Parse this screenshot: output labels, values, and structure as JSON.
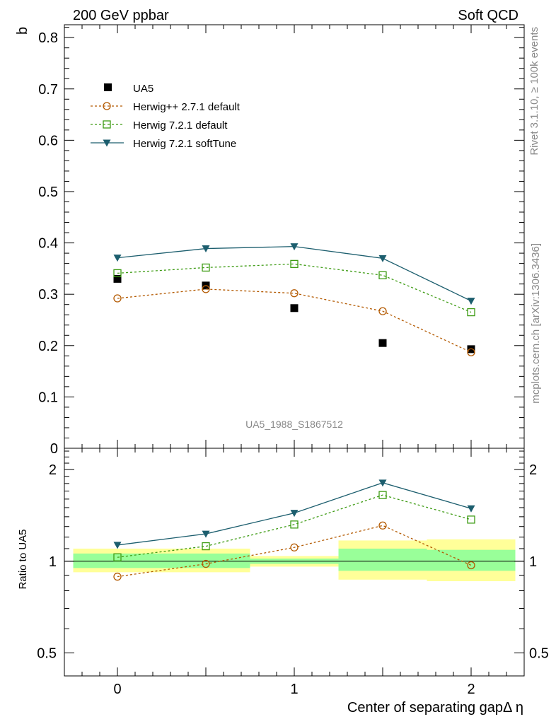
{
  "header": {
    "left_title": "200 GeV ppbar",
    "right_title": "Soft QCD"
  },
  "side_labels": {
    "rivet": "Rivet 3.1.10, ≥ 100k events",
    "mcplots": "mcplots.cern.ch [arXiv:1306.3436]"
  },
  "analysis_id": "UA5_1988_S1867512",
  "legend": {
    "ua5": "UA5",
    "hpp": "Herwig++ 2.7.1 default",
    "h721": "Herwig 7.2.1 default",
    "soft": "Herwig 7.2.1 softTune"
  },
  "colors": {
    "data": "#000000",
    "hpp": "#b35900",
    "h721": "#3d9b13",
    "soft": "#1c5e6e",
    "band_inner": "#99ff99",
    "band_outer": "#ffff99"
  },
  "chart_data": [
    {
      "type": "scatter",
      "panel": "main",
      "ylabel": "b",
      "xlabel": "Center of separating gapΔ η",
      "xlim": [
        -0.3,
        2.3
      ],
      "ylim": [
        0,
        0.825
      ],
      "yticks": [
        "0",
        "0.1",
        "0.2",
        "0.3",
        "0.4",
        "0.5",
        "0.6",
        "0.7",
        "0.8"
      ],
      "x": [
        0,
        0.5,
        1,
        1.5,
        2
      ],
      "series": [
        {
          "name": "UA5",
          "values": [
            0.33,
            0.317,
            0.273,
            0.205,
            0.193
          ]
        },
        {
          "name": "Herwig++ 2.7.1 default",
          "values": [
            0.292,
            0.31,
            0.302,
            0.267,
            0.187
          ]
        },
        {
          "name": "Herwig 7.2.1 default",
          "values": [
            0.341,
            0.352,
            0.359,
            0.337,
            0.265
          ]
        },
        {
          "name": "Herwig 7.2.1 softTune",
          "values": [
            0.371,
            0.389,
            0.393,
            0.37,
            0.287
          ]
        }
      ],
      "legend_position": "top-left"
    },
    {
      "type": "line",
      "panel": "ratio",
      "ylabel": "Ratio to UA5",
      "xlabel": "Center of separating gapΔ η",
      "xlim": [
        -0.3,
        2.3
      ],
      "ylim": [
        0.42,
        2.35
      ],
      "yscale": "log",
      "yticks": [
        "0.5",
        "1",
        "2"
      ],
      "xticks": [
        "0",
        "1",
        "2"
      ],
      "x": [
        0,
        0.5,
        1,
        1.5,
        2
      ],
      "bands": [
        {
          "x_range": [
            -0.25,
            0.25
          ],
          "inner": [
            0.95,
            1.06
          ],
          "outer": [
            0.92,
            1.1
          ]
        },
        {
          "x_range": [
            0.25,
            0.75
          ],
          "inner": [
            0.95,
            1.06
          ],
          "outer": [
            0.92,
            1.1
          ]
        },
        {
          "x_range": [
            0.75,
            1.25
          ],
          "inner": [
            0.98,
            1.02
          ],
          "outer": [
            0.96,
            1.04
          ]
        },
        {
          "x_range": [
            1.25,
            1.75
          ],
          "inner": [
            0.93,
            1.1
          ],
          "outer": [
            0.87,
            1.17
          ]
        },
        {
          "x_range": [
            1.75,
            2.25
          ],
          "inner": [
            0.93,
            1.09
          ],
          "outer": [
            0.86,
            1.18
          ]
        }
      ],
      "series": [
        {
          "name": "Herwig++ 2.7.1 default",
          "values": [
            0.89,
            0.98,
            1.11,
            1.31,
            0.97
          ]
        },
        {
          "name": "Herwig 7.2.1 default",
          "values": [
            1.03,
            1.12,
            1.32,
            1.65,
            1.37
          ]
        },
        {
          "name": "Herwig 7.2.1 softTune",
          "values": [
            1.13,
            1.23,
            1.44,
            1.81,
            1.49
          ]
        }
      ]
    }
  ]
}
